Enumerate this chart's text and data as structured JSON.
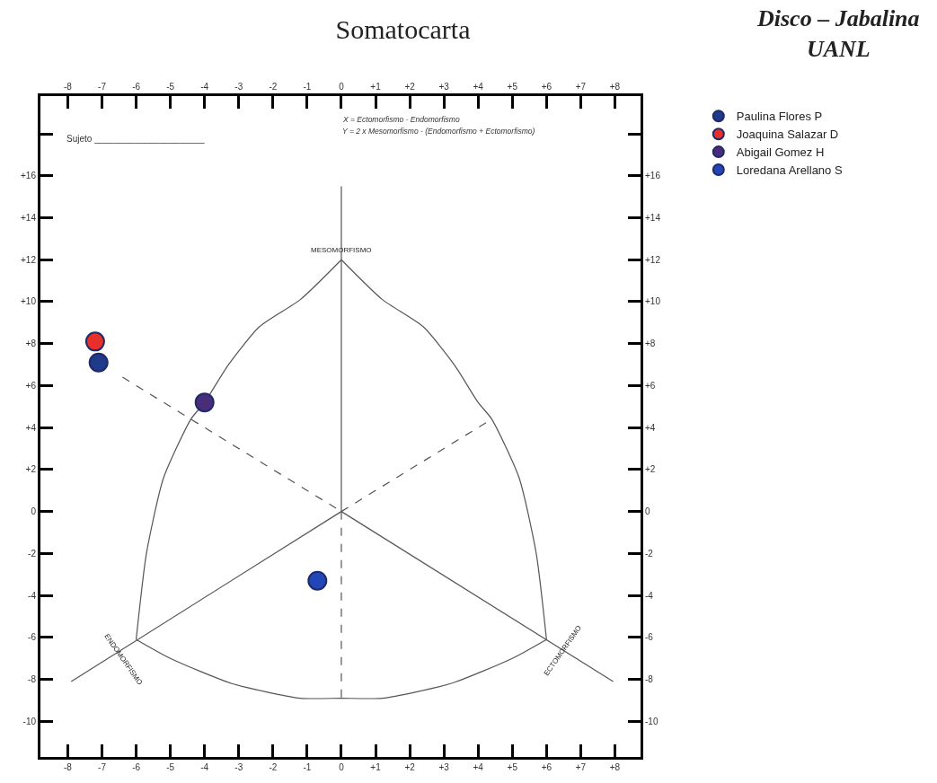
{
  "chart_data": {
    "type": "scatter",
    "title": "Somatocarta",
    "subtitle": "Disco – Jabalina\nUANL",
    "xlim": [
      -8.8,
      8.75
    ],
    "ylim": [
      -11.7,
      19.8
    ],
    "xticks": [
      -8,
      -7,
      -6,
      -5,
      -4,
      -3,
      -2,
      -1,
      0,
      {
        "value": 1,
        "label": "+1"
      },
      {
        "value": 2,
        "label": "+2"
      },
      {
        "value": 3,
        "label": "+3"
      },
      {
        "value": 4,
        "label": "+4"
      },
      {
        "value": 5,
        "label": "+5"
      },
      {
        "value": 6,
        "label": "+6"
      },
      {
        "value": 7,
        "label": "+7"
      },
      {
        "value": 8,
        "label": "+8"
      }
    ],
    "x2lim": [
      -8.8,
      8.75
    ],
    "x2ticks": [
      -8,
      -7,
      -6,
      -5,
      -4,
      -3,
      -2,
      -1,
      0,
      {
        "value": 1,
        "label": "+1"
      },
      {
        "value": 2,
        "label": "+2"
      },
      {
        "value": 3,
        "label": "+3"
      },
      {
        "value": 4,
        "label": "+4"
      },
      {
        "value": 5,
        "label": "+5"
      },
      {
        "value": 6,
        "label": "+6"
      },
      {
        "value": 7,
        "label": "+7"
      },
      {
        "value": 8,
        "label": "+8"
      }
    ],
    "yticks": [
      -10,
      -8,
      -6,
      -4,
      -2,
      0,
      {
        "value": 2,
        "label": "+2"
      },
      {
        "value": 4,
        "label": "+4"
      },
      {
        "value": 6,
        "label": "+6"
      },
      {
        "value": 8,
        "label": "+8"
      },
      {
        "value": 10,
        "label": "+10"
      },
      {
        "value": 12,
        "label": "+12"
      },
      {
        "value": 14,
        "label": "+14"
      },
      {
        "value": 16,
        "label": "+16"
      },
      {
        "value": 18,
        "label": null
      }
    ],
    "y2lim": [
      -11.7,
      19.8
    ],
    "y2ticks": [
      -10,
      -8,
      -6,
      -4,
      -2,
      0,
      {
        "value": 2,
        "label": "+2"
      },
      {
        "value": 4,
        "label": "+4"
      },
      {
        "value": 6,
        "label": "+6"
      },
      {
        "value": 8,
        "label": "+8"
      },
      {
        "value": 10,
        "label": "+10"
      },
      {
        "value": 12,
        "label": "+12"
      },
      {
        "value": 14,
        "label": "+14"
      },
      {
        "value": 16,
        "label": "+16"
      },
      {
        "value": 18,
        "label": null
      }
    ],
    "legend": "top right",
    "marker": "circle",
    "annotations": [
      "Sujeto ______________________",
      "X = Ectomorfismo - Endomorfismo",
      "Y = 2 x Mesomorfismo - (Endomorfismo + Ectomorfismo)",
      {
        "text": "MESOMORFISMO",
        "x": 0,
        "y": 12
      },
      {
        "text": "ENDOMORFISMO",
        "x": -6,
        "y": -6.1
      },
      {
        "text": "ECTOMORFISMO",
        "x": 6,
        "y": -6.1
      }
    ],
    "series": [
      {
        "type": "line",
        "marker": "none",
        "color": "#555555",
        "line_style": "solid",
        "x": [
          0,
          -1.2,
          -2.4,
          -3.3,
          -4.0,
          -4.4,
          -5.2,
          -5.7,
          -6.0
        ],
        "values": [
          12,
          10.1,
          8.8,
          7.0,
          5.2,
          4.4,
          1.6,
          -2.0,
          -6.1
        ]
      },
      {
        "type": "line",
        "marker": "none",
        "color": "#555555",
        "line_style": "solid",
        "x": [
          0,
          1.2,
          2.4,
          3.3,
          4.0,
          4.4,
          5.2,
          5.7,
          6.0
        ],
        "values": [
          12,
          10.1,
          8.8,
          7.0,
          5.2,
          4.4,
          1.6,
          -2.0,
          -6.1
        ]
      },
      {
        "type": "line",
        "marker": "none",
        "color": "#555555",
        "line_style": "solid",
        "x": [
          -6.0,
          -5.0,
          -3.2,
          -1.2,
          0,
          1.2,
          3.2,
          5.0,
          6.0
        ],
        "values": [
          -6.1,
          -7.0,
          -8.2,
          -8.9,
          -8.9,
          -8.9,
          -8.2,
          -7.0,
          -6.1
        ]
      },
      {
        "type": "line",
        "marker": "none",
        "color": "#555555",
        "line_style": "solid",
        "x": [
          0,
          0
        ],
        "values": [
          15.5,
          0
        ]
      },
      {
        "type": "line",
        "marker": "none",
        "color": "#555555",
        "line_style": "dashed",
        "x": [
          0,
          0
        ],
        "values": [
          0,
          -8.9
        ]
      },
      {
        "type": "line",
        "marker": "none",
        "color": "#555555",
        "line_style": "solid",
        "x": [
          -7.9,
          0
        ],
        "values": [
          -8.1,
          0
        ]
      },
      {
        "type": "line",
        "marker": "none",
        "color": "#555555",
        "line_style": "dashed",
        "x": [
          0,
          4.4
        ],
        "values": [
          0,
          4.4
        ]
      },
      {
        "type": "line",
        "marker": "none",
        "color": "#555555",
        "line_style": "dashed",
        "x": [
          -6.4,
          0
        ],
        "values": [
          6.4,
          0
        ]
      },
      {
        "type": "line",
        "marker": "none",
        "color": "#555555",
        "line_style": "solid",
        "x": [
          0,
          7.95
        ],
        "values": [
          0,
          -8.1
        ]
      },
      {
        "name": "Paulina Flores P",
        "color": "#1f3a8a",
        "x": [
          -7.1
        ],
        "values": [
          7.1
        ]
      },
      {
        "name": "Joaquina Salazar D",
        "color": "#e8302a",
        "x": [
          -7.2
        ],
        "values": [
          8.1
        ]
      },
      {
        "name": "Abigail Gomez H",
        "color": "#4a2d7a",
        "x": [
          -4.0
        ],
        "values": [
          5.2
        ]
      },
      {
        "name": "Loredana Arellano S",
        "color": "#2146b8",
        "x": [
          -0.7
        ],
        "values": [
          -3.3
        ]
      }
    ]
  }
}
